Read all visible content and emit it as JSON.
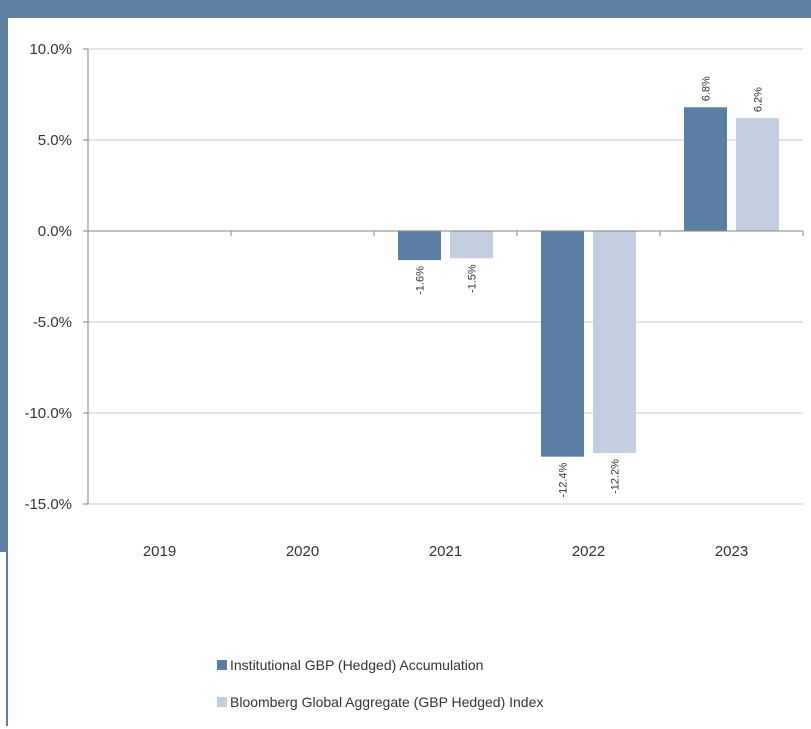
{
  "colors": {
    "frame": "#5c7fa2",
    "series1": "#5b7fa3",
    "series2": "#c3cfe1",
    "grid": "#c8c8c8",
    "axis": "#808080"
  },
  "chart_data": {
    "type": "bar",
    "categories": [
      "2019",
      "2020",
      "2021",
      "2022",
      "2023"
    ],
    "series": [
      {
        "name": "Institutional GBP (Hedged) Accumulation",
        "values": [
          null,
          null,
          -1.6,
          -12.4,
          6.8
        ],
        "labels": [
          "",
          "",
          "-1.6%",
          "-12.4%",
          "6.8%"
        ]
      },
      {
        "name": "Bloomberg Global Aggregate (GBP Hedged) Index",
        "values": [
          null,
          null,
          -1.5,
          -12.2,
          6.2
        ],
        "labels": [
          "",
          "",
          "-1.5%",
          "-12.2%",
          "6.2%"
        ]
      }
    ],
    "y_ticks": [
      10,
      5,
      0,
      -5,
      -10,
      -15
    ],
    "y_tick_labels": [
      "10.0%",
      "5.0%",
      "0.0%",
      "-5.0%",
      "-10.0%",
      "-15.0%"
    ],
    "ylim": [
      -15,
      10
    ],
    "grid": true,
    "legend_position": "bottom-center"
  }
}
